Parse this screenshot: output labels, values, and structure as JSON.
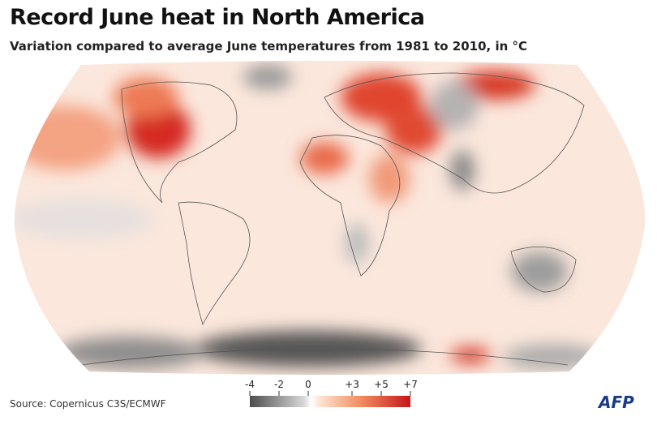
{
  "header": {
    "title": "Record June heat in North America",
    "subtitle": "Variation compared to average June temperatures from 1981 to 2010, in °C"
  },
  "legend": {
    "range": [
      -4,
      7
    ],
    "ticks": [
      -4,
      -2,
      0,
      {
        "value": 3,
        "label": "+3"
      },
      {
        "value": 5,
        "label": "+5"
      },
      {
        "value": 7,
        "label": "+7"
      }
    ]
  },
  "footer": {
    "source": "Source: Copernicus C3S/ECMWF",
    "logo": "AFP"
  }
}
